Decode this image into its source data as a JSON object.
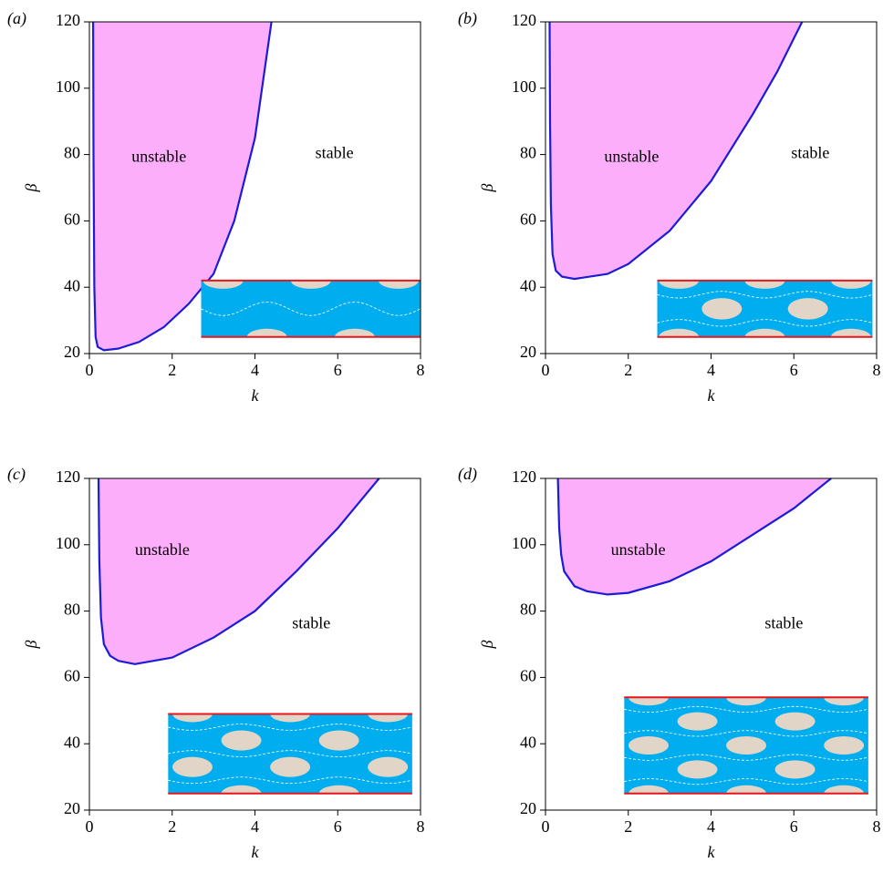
{
  "chart_data": [
    {
      "type": "area",
      "panel_label": "(a)",
      "x_label": "k",
      "y_label": "β",
      "x": [
        0.09,
        0.1,
        0.12,
        0.15,
        0.2,
        0.35,
        0.7,
        1.2,
        1.8,
        2.4,
        3,
        3.5,
        4,
        4.4
      ],
      "values": [
        120,
        80,
        40,
        25,
        22,
        21,
        21.5,
        23.5,
        28,
        35,
        44,
        60,
        85,
        120
      ],
      "fill_color": "#fdaefb",
      "line_color": "#1c1cd6",
      "xlim": [
        0,
        8
      ],
      "ylim": [
        20,
        120
      ],
      "xticks": [
        0,
        2,
        4,
        6,
        8
      ],
      "yticks": [
        20,
        40,
        60,
        80,
        100,
        120
      ],
      "annotations": [
        "unstable",
        "stable"
      ]
    },
    {
      "type": "area",
      "panel_label": "(b)",
      "x_label": "k",
      "y_label": "β",
      "x": [
        0.1,
        0.11,
        0.13,
        0.17,
        0.25,
        0.4,
        0.7,
        1.5,
        2,
        3,
        4,
        5,
        5.6,
        6.2
      ],
      "values": [
        120,
        90,
        65,
        50,
        45,
        43.2,
        42.5,
        44,
        47,
        57,
        72,
        92,
        105,
        120
      ],
      "fill_color": "#fdaefb",
      "line_color": "#1c1cd6",
      "xlim": [
        0,
        8
      ],
      "ylim": [
        20,
        120
      ],
      "xticks": [
        0,
        2,
        4,
        6,
        8
      ],
      "yticks": [
        20,
        40,
        60,
        80,
        100,
        120
      ],
      "annotations": [
        "unstable",
        "stable"
      ]
    },
    {
      "type": "area",
      "panel_label": "(c)",
      "x_label": "k",
      "y_label": "β",
      "x": [
        0.22,
        0.24,
        0.28,
        0.35,
        0.5,
        0.7,
        1.1,
        2,
        3,
        4,
        5,
        6,
        7
      ],
      "values": [
        120,
        95,
        78,
        70,
        66.5,
        65,
        64,
        66,
        72,
        80,
        92,
        105,
        120
      ],
      "fill_color": "#fdaefb",
      "line_color": "#1c1cd6",
      "xlim": [
        0,
        8
      ],
      "ylim": [
        20,
        120
      ],
      "xticks": [
        0,
        2,
        4,
        6,
        8
      ],
      "yticks": [
        20,
        40,
        60,
        80,
        100,
        120
      ],
      "annotations": [
        "unstable",
        "stable"
      ]
    },
    {
      "type": "area",
      "panel_label": "(d)",
      "x_label": "k",
      "y_label": "β",
      "x": [
        0.3,
        0.33,
        0.38,
        0.45,
        0.7,
        1,
        1.5,
        2,
        3,
        4,
        5,
        6,
        6.9
      ],
      "values": [
        120,
        105,
        97,
        92,
        87.5,
        86,
        85,
        85.5,
        89,
        95,
        103,
        111,
        120
      ],
      "fill_color": "#fdaefb",
      "line_color": "#1c1cd6",
      "xlim": [
        0,
        8
      ],
      "ylim": [
        20,
        120
      ],
      "xticks": [
        0,
        2,
        4,
        6,
        8
      ],
      "yticks": [
        20,
        40,
        60,
        80,
        100,
        120
      ],
      "annotations": [
        "unstable",
        "stable"
      ]
    }
  ]
}
